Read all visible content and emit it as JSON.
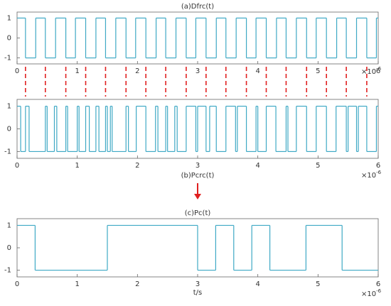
{
  "chart_data": [
    {
      "type": "line",
      "title": "(a)Dfrc(t)",
      "title_position": "top",
      "step": "post",
      "color": "#3fa9c5",
      "x": [
        0,
        0.14,
        0.31,
        0.47,
        0.64,
        0.81,
        0.97,
        1.14,
        1.31,
        1.47,
        1.64,
        1.81,
        1.97,
        2.14,
        2.31,
        2.47,
        2.64,
        2.81,
        2.97,
        3.14,
        3.31,
        3.47,
        3.64,
        3.81,
        3.97,
        4.14,
        4.31,
        4.47,
        4.64,
        4.81,
        4.97,
        5.14,
        5.31,
        5.47,
        5.64,
        5.81,
        5.97,
        6
      ],
      "values": [
        1,
        -1,
        1,
        -1,
        1,
        -1,
        1,
        -1,
        1,
        -1,
        1,
        -1,
        1,
        -1,
        1,
        -1,
        1,
        -1,
        1,
        -1,
        1,
        -1,
        1,
        -1,
        1,
        -1,
        1,
        -1,
        1,
        -1,
        1,
        -1,
        1,
        -1,
        1,
        -1,
        1,
        1
      ],
      "xlim": [
        0,
        6
      ],
      "xticks": [
        0,
        1,
        2,
        3,
        4,
        5,
        6
      ],
      "ylim": [
        -1.3,
        1.3
      ],
      "yticks": [
        -1,
        0,
        1
      ],
      "x_multiplier_base": "×10",
      "x_multiplier_exponent": "-6"
    },
    {
      "type": "line",
      "title": "(b)Pcrc(t)",
      "title_position": "bottom",
      "step": "post",
      "color": "#3fa9c5",
      "x": [
        0,
        0.06,
        0.14,
        0.2,
        0.47,
        0.5,
        0.62,
        0.66,
        0.81,
        0.84,
        1.0,
        1.03,
        1.14,
        1.2,
        1.31,
        1.36,
        1.47,
        1.5,
        1.55,
        1.58,
        1.81,
        1.85,
        1.98,
        2.14,
        2.3,
        2.34,
        2.47,
        2.5,
        2.62,
        2.66,
        2.81,
        2.97,
        3.0,
        3.14,
        3.2,
        3.31,
        3.47,
        3.63,
        3.66,
        3.81,
        3.97,
        4.0,
        4.14,
        4.3,
        4.47,
        4.5,
        4.64,
        4.81,
        4.97,
        5.14,
        5.3,
        5.47,
        5.5,
        5.64,
        5.67,
        5.81,
        5.97,
        6
      ],
      "values": [
        1,
        -1,
        1,
        -1,
        1,
        -1,
        1,
        -1,
        1,
        -1,
        1,
        -1,
        1,
        -1,
        1,
        -1,
        1,
        -1,
        1,
        -1,
        1,
        -1,
        1,
        -1,
        1,
        -1,
        1,
        -1,
        1,
        -1,
        1,
        -1,
        1,
        -1,
        1,
        -1,
        1,
        -1,
        1,
        -1,
        1,
        -1,
        1,
        -1,
        1,
        -1,
        1,
        -1,
        1,
        -1,
        1,
        -1,
        1,
        -1,
        1,
        -1,
        1,
        1
      ],
      "xlim": [
        0,
        6
      ],
      "xticks": [
        0,
        1,
        2,
        3,
        4,
        5,
        6
      ],
      "ylim": [
        -1.3,
        1.3
      ],
      "yticks": [
        -1,
        0,
        1
      ],
      "x_multiplier_base": "×10",
      "x_multiplier_exponent": "-6"
    },
    {
      "type": "line",
      "title": "(c)Pc(t)",
      "title_position": "top",
      "step": "post",
      "color": "#3fa9c5",
      "x_label": "t/s",
      "x": [
        0,
        0.3,
        1.5,
        3.0,
        3.3,
        3.6,
        3.9,
        4.2,
        4.8,
        5.4,
        6
      ],
      "values": [
        1,
        -1,
        1,
        -1,
        1,
        -1,
        1,
        -1,
        1,
        -1,
        -1
      ],
      "xlim": [
        0,
        6
      ],
      "xticks": [
        0,
        1,
        2,
        3,
        4,
        5,
        6
      ],
      "ylim": [
        -1.3,
        1.3
      ],
      "yticks": [
        -1,
        0,
        1
      ],
      "x_multiplier_base": "×10",
      "x_multiplier_exponent": "-6"
    }
  ]
}
